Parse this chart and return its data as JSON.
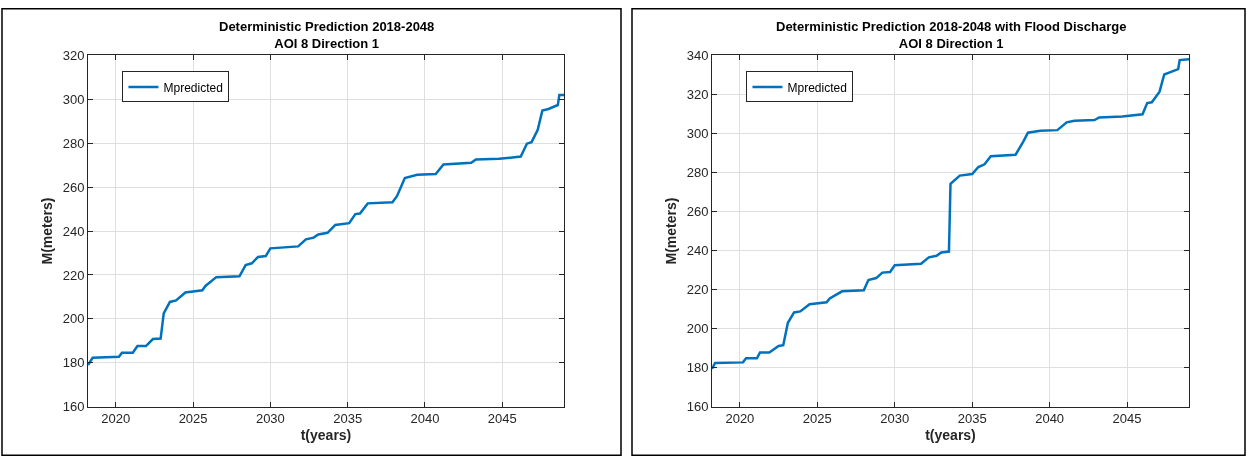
{
  "chart_data": [
    {
      "type": "line",
      "title": "Deterministic Prediction 2018-2048",
      "subtitle": "AOI 8 Direction 1",
      "xlabel": "t(years)",
      "ylabel": "M(meters)",
      "xlim": [
        2018.2,
        2049
      ],
      "xticks": [
        2020,
        2025,
        2030,
        2035,
        2040,
        2045
      ],
      "ylim": [
        160,
        320
      ],
      "yticks": [
        160,
        180,
        200,
        220,
        240,
        260,
        280,
        300,
        320
      ],
      "grid": true,
      "legend": "top left",
      "marker": "none",
      "line_style": "solid",
      "series": [
        {
          "name": "Mpredicted",
          "color": "#0072bd",
          "x": [
            2018.2,
            2018.5,
            2020.2,
            2020.4,
            2021.1,
            2021.4,
            2021.95,
            2022.4,
            2022.9,
            2023.1,
            2023.5,
            2023.9,
            2024.5,
            2025.6,
            2025.8,
            2026.5,
            2028.0,
            2028.4,
            2028.8,
            2029.2,
            2029.7,
            2030.0,
            2031.8,
            2032.3,
            2032.8,
            2033.1,
            2033.7,
            2034.2,
            2035.1,
            2035.5,
            2035.8,
            2036.3,
            2037.9,
            2038.2,
            2038.7,
            2039.5,
            2040.7,
            2041.2,
            2043.0,
            2043.3,
            2044.8,
            2046.2,
            2046.6,
            2046.9,
            2047.3,
            2047.6,
            2048.0,
            2048.6,
            2048.7,
            2049.0
          ],
          "values": [
            179,
            182.3,
            182.7,
            184.6,
            184.6,
            187.6,
            187.6,
            190.8,
            191,
            202.5,
            207.7,
            208.4,
            212,
            213,
            215,
            219,
            219.4,
            224.5,
            225.3,
            228.2,
            228.6,
            232.1,
            233,
            236.2,
            237,
            238.4,
            239.2,
            242.8,
            243.6,
            247.7,
            248,
            252.6,
            253.1,
            256,
            264.1,
            265.6,
            266,
            270.3,
            271.1,
            272.6,
            272.9,
            273.9,
            279.8,
            280.5,
            286.1,
            294.9,
            295.6,
            297.4,
            302,
            302
          ]
        }
      ]
    },
    {
      "type": "line",
      "title": "Deterministic Prediction 2018-2048 with Flood Discharge",
      "subtitle": "AOI 8 Direction 1",
      "xlabel": "t(years)",
      "ylabel": "M(meters)",
      "xlim": [
        2018.2,
        2049
      ],
      "xticks": [
        2020,
        2025,
        2030,
        2035,
        2040,
        2045
      ],
      "ylim": [
        160,
        340
      ],
      "yticks": [
        160,
        180,
        200,
        220,
        240,
        260,
        280,
        300,
        320,
        340
      ],
      "grid": true,
      "legend": "top left",
      "marker": "none",
      "line_style": "solid",
      "series": [
        {
          "name": "Mpredicted",
          "color": "#0072bd",
          "x": [
            2018.2,
            2018.4,
            2020.2,
            2020.4,
            2021.1,
            2021.3,
            2021.9,
            2022.5,
            2022.8,
            2023.1,
            2023.5,
            2023.9,
            2024.5,
            2025.6,
            2025.8,
            2026.6,
            2028.0,
            2028.3,
            2028.8,
            2029.2,
            2029.7,
            2030.0,
            2031.7,
            2032.2,
            2032.7,
            2033.0,
            2033.5,
            2033.6,
            2034.2,
            2035.0,
            2035.4,
            2035.8,
            2036.2,
            2037.8,
            2038.3,
            2038.6,
            2039.4,
            2040.5,
            2041.1,
            2041.6,
            2042.9,
            2043.2,
            2044.7,
            2046.0,
            2046.3,
            2046.6,
            2047.1,
            2047.4,
            2047.8,
            2048.3,
            2048.4,
            2049.0
          ],
          "values": [
            179.4,
            182.4,
            182.7,
            184.8,
            184.8,
            187.8,
            187.8,
            191.1,
            191.5,
            203,
            208.3,
            208.8,
            212.5,
            213.5,
            215.5,
            219.1,
            219.6,
            224.9,
            225.9,
            228.7,
            229,
            232.5,
            233.2,
            236.5,
            237.3,
            239,
            239.5,
            274.2,
            278.4,
            279.2,
            282.8,
            284.2,
            288.3,
            289.1,
            295.8,
            300.4,
            301.4,
            301.7,
            305.7,
            306.5,
            306.9,
            308.2,
            308.7,
            309.8,
            315.6,
            316,
            321.4,
            330.2,
            331.4,
            333,
            337.6,
            338
          ]
        }
      ]
    }
  ]
}
